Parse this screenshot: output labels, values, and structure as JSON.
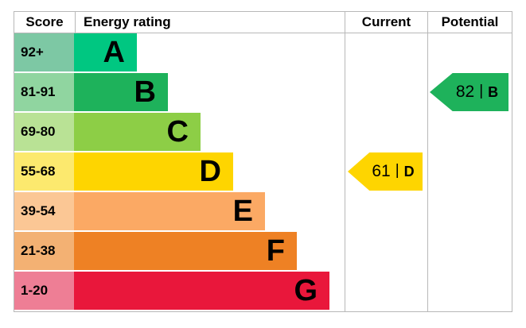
{
  "headers": {
    "score": "Score",
    "energy_rating": "Energy rating",
    "current": "Current",
    "potential": "Potential"
  },
  "rows": [
    {
      "score_range": "92+",
      "band": "A",
      "score_bg": "#7dc8a4",
      "bar_color": "#00c781"
    },
    {
      "score_range": "81-91",
      "band": "B",
      "score_bg": "#90d5a0",
      "bar_color": "#1eb25b"
    },
    {
      "score_range": "69-80",
      "band": "C",
      "score_bg": "#b9e295",
      "bar_color": "#8dce46"
    },
    {
      "score_range": "55-68",
      "band": "D",
      "score_bg": "#fce96e",
      "bar_color": "#fed500"
    },
    {
      "score_range": "39-54",
      "band": "E",
      "score_bg": "#fbc795",
      "bar_color": "#fba964"
    },
    {
      "score_range": "21-38",
      "band": "F",
      "score_bg": "#f3b173",
      "bar_color": "#ee8124"
    },
    {
      "score_range": "1-20",
      "band": "G",
      "score_bg": "#ee7e95",
      "bar_color": "#e9173b"
    }
  ],
  "current": {
    "value": "61",
    "divider": "|",
    "band": "D",
    "color": "#fed500"
  },
  "potential": {
    "value": "82",
    "divider": "|",
    "band": "B",
    "color": "#1eb25b"
  },
  "border_color": "#b8b8b8",
  "chart_data": {
    "type": "bar",
    "title": "Energy efficiency rating (EPC)",
    "categories": [
      "A",
      "B",
      "C",
      "D",
      "E",
      "F",
      "G"
    ],
    "score_ranges": [
      "92+",
      "81-91",
      "69-80",
      "55-68",
      "39-54",
      "21-38",
      "1-20"
    ],
    "bar_colors": [
      "#00c781",
      "#1eb25b",
      "#8dce46",
      "#fed500",
      "#fba964",
      "#ee8124",
      "#e9173b"
    ],
    "values_relative_width": [
      79,
      118,
      159,
      200,
      240,
      280,
      321
    ],
    "current": {
      "score": 61,
      "band": "D"
    },
    "potential": {
      "score": 82,
      "band": "B"
    },
    "legend_position": "none",
    "grid": false
  }
}
